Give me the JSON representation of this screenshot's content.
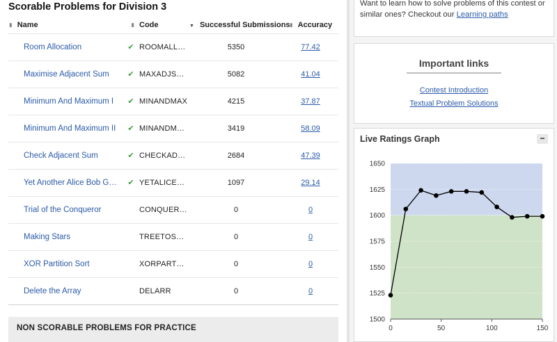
{
  "scorable": {
    "title": "Scorable Problems for Division 3",
    "columns": {
      "name": "Name",
      "code": "Code",
      "submissions": "Successful Submissions",
      "accuracy": "Accuracy"
    },
    "rows": [
      {
        "name": "Room Allocation",
        "solved": true,
        "code": "ROOMALL…",
        "submissions": "5350",
        "accuracy": "77.42"
      },
      {
        "name": "Maximise Adjacent Sum",
        "solved": true,
        "code": "MAXADJS…",
        "submissions": "5082",
        "accuracy": "41.04"
      },
      {
        "name": "Minimum And Maximum I",
        "solved": true,
        "code": "MINANDMAX",
        "submissions": "4215",
        "accuracy": "37.87"
      },
      {
        "name": "Minimum And Maximum II",
        "solved": true,
        "code": "MINANDM…",
        "submissions": "3419",
        "accuracy": "58.09"
      },
      {
        "name": "Check Adjacent Sum",
        "solved": true,
        "code": "CHECKAD…",
        "submissions": "2684",
        "accuracy": "47.39"
      },
      {
        "name": "Yet Another Alice Bob G…",
        "solved": true,
        "code": "YETALICE…",
        "submissions": "1097",
        "accuracy": "29.14"
      },
      {
        "name": "Trial of the Conqueror",
        "solved": false,
        "code": "CONQUER…",
        "submissions": "0",
        "accuracy": "0"
      },
      {
        "name": "Making Stars",
        "solved": false,
        "code": "TREETOS…",
        "submissions": "0",
        "accuracy": "0"
      },
      {
        "name": "XOR Partition Sort",
        "solved": false,
        "code": "XORPART…",
        "submissions": "0",
        "accuracy": "0"
      },
      {
        "name": "Delete the Array",
        "solved": false,
        "code": "DELARR",
        "submissions": "0",
        "accuracy": "0"
      }
    ]
  },
  "nonscorable": {
    "title": "NON SCORABLE PROBLEMS FOR PRACTICE"
  },
  "learn": {
    "text": "Want to learn how to solve problems of this contest or similar ones? Checkout our ",
    "link": "Learning paths"
  },
  "links": {
    "title": "Important links",
    "items": [
      "Contest Introduction",
      "Textual Problem Solutions"
    ]
  },
  "graph": {
    "title": "Live Ratings Graph",
    "collapse_label": "−"
  },
  "colors": {
    "link": "#2b5aa8",
    "check": "#3a9d3a",
    "band_upper": "#cdd8ef",
    "band_lower": "#cfe3c8"
  },
  "chart_data": {
    "type": "line",
    "title": "Live Ratings Graph",
    "x": [
      0,
      15,
      30,
      45,
      60,
      75,
      90,
      105,
      120,
      135,
      150
    ],
    "values": [
      1523,
      1606,
      1624,
      1619,
      1623,
      1623,
      1622,
      1608,
      1598,
      1599,
      1599
    ],
    "xlim": [
      0,
      150
    ],
    "ylim": [
      1500,
      1650
    ],
    "xticks": [
      "0",
      "50",
      "100",
      "150"
    ],
    "yticks": [
      "1650",
      "1625",
      "1600",
      "1575",
      "1550",
      "1525",
      "1500"
    ],
    "bands": [
      {
        "from": 1600,
        "to": 1650,
        "color": "#cdd8ef"
      },
      {
        "from": 1500,
        "to": 1600,
        "color": "#cfe3c8"
      }
    ],
    "xlabel": "",
    "ylabel": "",
    "grid": true
  }
}
